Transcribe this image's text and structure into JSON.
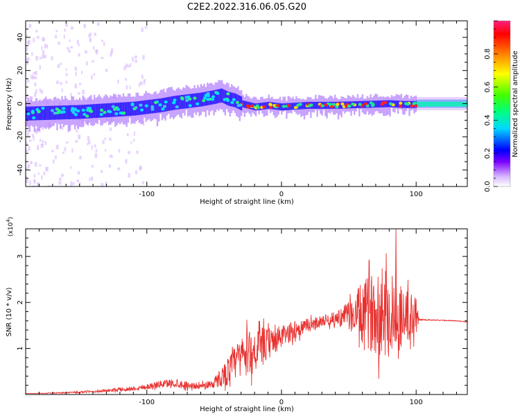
{
  "figure_title": "C2E2.2022.316.06.05.G20",
  "chart_data": [
    {
      "type": "heatmap",
      "panel": "spectrogram",
      "xlabel": "Height of straight line (km)",
      "ylabel": "Frequency (Hz)",
      "xlim": [
        -190,
        138
      ],
      "ylim": [
        -50,
        50
      ],
      "x_ticks": [
        -100,
        0,
        100
      ],
      "x_tick_labels": [
        "-100",
        "0",
        "100"
      ],
      "y_ticks": [
        -40,
        -20,
        0,
        20,
        40
      ],
      "y_tick_labels": [
        "-40",
        "-20",
        "0",
        "20",
        "40"
      ],
      "colorbar": {
        "label": "Normalized spectral amplitude",
        "range": [
          0,
          1
        ],
        "ticks": [
          0.0,
          0.2,
          0.4,
          0.6,
          0.8
        ],
        "tick_labels": [
          "0.0",
          "0.2",
          "0.4",
          "0.6",
          "0.8"
        ],
        "colormap": [
          "#ffffff",
          "#d8b8ff",
          "#7a00ff",
          "#0000ff",
          "#00d8ff",
          "#00ff80",
          "#40ff00",
          "#ffff00",
          "#ff8000",
          "#ff0000",
          "#ff2080"
        ]
      },
      "ridge": {
        "x": [
          -190,
          -170,
          -150,
          -130,
          -110,
          -100,
          -90,
          -80,
          -70,
          -60,
          -50,
          -45,
          -40,
          -35,
          -30,
          -25,
          -20,
          -15,
          -10,
          -5,
          0,
          10,
          20,
          40,
          60,
          80,
          90,
          100,
          138
        ],
        "y": [
          -6,
          -5.5,
          -5,
          -4,
          -3,
          -2,
          -1,
          0.5,
          1.5,
          2.5,
          4,
          5,
          3,
          2,
          0,
          -1,
          -2,
          -1.5,
          -1,
          -1.5,
          -2,
          -1.5,
          -1,
          -1,
          -0.5,
          0,
          -0.5,
          -0.5,
          -0.5
        ]
      }
    },
    {
      "type": "line",
      "panel": "snr",
      "xlabel": "Height of straight line (km)",
      "ylabel": "SNR (10 * v/v)",
      "y_multiplier_label": "(x10",
      "y_multiplier_exponent": "4",
      "y_multiplier_close": ")",
      "xlim": [
        -190,
        138
      ],
      "ylim": [
        0,
        3.6
      ],
      "x_ticks": [
        -100,
        0,
        100
      ],
      "x_tick_labels": [
        "-100",
        "0",
        "100"
      ],
      "y_ticks": [
        1,
        2,
        3
      ],
      "y_tick_labels": [
        "1",
        "2",
        "3"
      ],
      "color": "#e8302e",
      "series": [
        {
          "x": [
            -190,
            -170,
            -150,
            -130,
            -110,
            -100,
            -90,
            -80,
            -70,
            -60,
            -50,
            -40,
            -30,
            -20,
            -10,
            0,
            10,
            20,
            30,
            40,
            50,
            60,
            70,
            80,
            90,
            100,
            102,
            110,
            120,
            130,
            138
          ],
          "y": [
            0.02,
            0.03,
            0.05,
            0.08,
            0.13,
            0.17,
            0.22,
            0.25,
            0.2,
            0.18,
            0.25,
            0.5,
            0.85,
            0.95,
            1.1,
            1.25,
            1.4,
            1.5,
            1.6,
            1.65,
            1.72,
            1.75,
            1.8,
            1.75,
            1.7,
            1.65,
            1.63,
            1.62,
            1.61,
            1.6,
            1.58
          ],
          "noise": [
            0.0,
            0.01,
            0.02,
            0.03,
            0.05,
            0.06,
            0.08,
            0.1,
            0.08,
            0.06,
            0.12,
            0.3,
            0.45,
            0.5,
            0.35,
            0.25,
            0.2,
            0.15,
            0.12,
            0.15,
            0.3,
            0.7,
            0.9,
            1.0,
            0.7,
            0.5,
            0.02,
            0.01,
            0.01,
            0.01,
            0.01
          ]
        }
      ]
    }
  ]
}
